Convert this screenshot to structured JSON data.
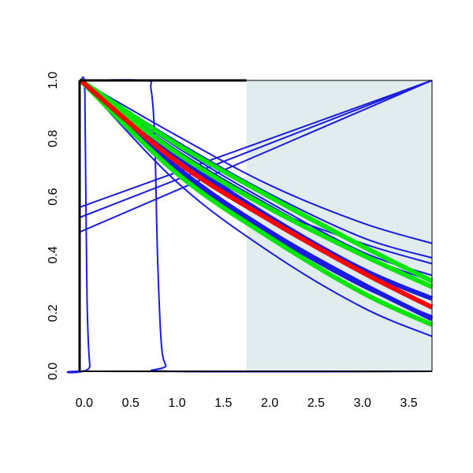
{
  "chart_data": {
    "type": "line",
    "title": "",
    "xlabel": "",
    "ylabel": "",
    "xlim": [
      -0.05,
      3.75
    ],
    "ylim": [
      0.0,
      1.0
    ],
    "x_ticks": [
      0.0,
      0.5,
      1.0,
      1.5,
      2.0,
      2.5,
      3.0,
      3.5
    ],
    "x_tick_labels": [
      "0.0",
      "0.5",
      "1.0",
      "1.5",
      "2.0",
      "2.5",
      "3.0",
      "3.5"
    ],
    "y_ticks": [
      0.0,
      0.2,
      0.4,
      0.6,
      0.8,
      1.0
    ],
    "y_tick_labels": [
      "0.0",
      "0.2",
      "0.4",
      "0.6",
      "0.8",
      "1.0"
    ],
    "grid": false,
    "legend": "none",
    "shaded_region": {
      "x_from": 1.75,
      "x_to": 3.75,
      "color": "#e0eced"
    },
    "colors": {
      "blue": "#1c1ce0",
      "red": "#ff0000",
      "green": "#00e600"
    },
    "series": [
      {
        "color": "blue",
        "width": "thin",
        "kind": "step",
        "points": [
          [
            -0.04,
            1.0
          ],
          [
            0.0,
            1.0
          ],
          [
            0.01,
            0.85
          ],
          [
            0.03,
            0.25
          ],
          [
            0.06,
            0.02
          ],
          [
            0.1,
            0.0
          ],
          [
            3.75,
            0.0
          ]
        ]
      },
      {
        "color": "blue",
        "width": "thin",
        "kind": "step",
        "points": [
          [
            -0.04,
            1.0
          ],
          [
            0.65,
            1.0
          ],
          [
            0.72,
            0.97
          ],
          [
            0.76,
            0.8
          ],
          [
            0.79,
            0.4
          ],
          [
            0.83,
            0.1
          ],
          [
            0.88,
            0.02
          ],
          [
            0.95,
            0.0
          ],
          [
            3.75,
            0.0
          ]
        ]
      },
      {
        "color": "blue",
        "width": "thin",
        "kind": "line",
        "points": [
          [
            -0.04,
            0.48
          ],
          [
            3.75,
            1.0
          ]
        ]
      },
      {
        "color": "blue",
        "width": "thin",
        "kind": "line",
        "points": [
          [
            -0.04,
            0.53
          ],
          [
            3.75,
            1.0
          ]
        ]
      },
      {
        "color": "blue",
        "width": "thin",
        "kind": "line",
        "points": [
          [
            -0.04,
            0.565
          ],
          [
            3.75,
            1.0
          ]
        ]
      },
      {
        "color": "blue",
        "width": "thin",
        "kind": "curve",
        "points": [
          [
            -0.04,
            1.0
          ],
          [
            1.0,
            0.74
          ],
          [
            2.0,
            0.56
          ],
          [
            3.0,
            0.44
          ],
          [
            3.75,
            0.37
          ]
        ]
      },
      {
        "color": "blue",
        "width": "thin",
        "kind": "curve",
        "points": [
          [
            -0.04,
            1.0
          ],
          [
            1.0,
            0.81
          ],
          [
            2.0,
            0.64
          ],
          [
            3.0,
            0.51
          ],
          [
            3.75,
            0.44
          ]
        ]
      },
      {
        "color": "blue",
        "width": "thin",
        "kind": "curve",
        "points": [
          [
            -0.04,
            1.0
          ],
          [
            1.0,
            0.79
          ],
          [
            2.0,
            0.61
          ],
          [
            3.0,
            0.46
          ],
          [
            3.75,
            0.39
          ]
        ]
      },
      {
        "color": "blue",
        "width": "thin",
        "kind": "curve",
        "points": [
          [
            -0.04,
            1.0
          ],
          [
            1.0,
            0.77
          ],
          [
            2.0,
            0.58
          ],
          [
            3.0,
            0.41
          ],
          [
            3.75,
            0.33
          ]
        ]
      },
      {
        "color": "blue",
        "width": "thin",
        "kind": "curve",
        "points": [
          [
            -0.04,
            1.0
          ],
          [
            1.0,
            0.76
          ],
          [
            2.0,
            0.57
          ],
          [
            3.0,
            0.4
          ],
          [
            3.75,
            0.31
          ]
        ]
      },
      {
        "color": "blue",
        "width": "thin",
        "kind": "curve",
        "points": [
          [
            -0.04,
            1.0
          ],
          [
            1.0,
            0.65
          ],
          [
            2.0,
            0.41
          ],
          [
            3.0,
            0.22
          ],
          [
            3.75,
            0.12
          ]
        ]
      },
      {
        "color": "blue",
        "width": "thin",
        "kind": "curve",
        "points": [
          [
            -0.04,
            1.0
          ],
          [
            1.0,
            0.69
          ],
          [
            2.0,
            0.47
          ],
          [
            3.0,
            0.29
          ],
          [
            3.75,
            0.19
          ]
        ]
      },
      {
        "color": "blue",
        "width": "thick",
        "kind": "curve",
        "points": [
          [
            -0.04,
            1.0
          ],
          [
            1.0,
            0.74
          ],
          [
            2.0,
            0.53
          ],
          [
            3.0,
            0.35
          ],
          [
            3.75,
            0.25
          ]
        ]
      },
      {
        "color": "blue",
        "width": "thick",
        "kind": "curve",
        "points": [
          [
            -0.04,
            1.0
          ],
          [
            1.0,
            0.7
          ],
          [
            2.0,
            0.48
          ],
          [
            3.0,
            0.3
          ],
          [
            3.75,
            0.18
          ]
        ]
      },
      {
        "color": "green",
        "width": "thick",
        "kind": "curve",
        "points": [
          [
            -0.04,
            1.0
          ],
          [
            1.0,
            0.78
          ],
          [
            2.0,
            0.6
          ],
          [
            3.0,
            0.43
          ],
          [
            3.75,
            0.31
          ]
        ]
      },
      {
        "color": "green",
        "width": "thick",
        "kind": "curve",
        "points": [
          [
            -0.04,
            1.0
          ],
          [
            1.0,
            0.75
          ],
          [
            2.0,
            0.56
          ],
          [
            3.0,
            0.4
          ],
          [
            3.75,
            0.29
          ]
        ]
      },
      {
        "color": "green",
        "width": "thick",
        "kind": "curve",
        "points": [
          [
            -0.04,
            1.0
          ],
          [
            1.0,
            0.68
          ],
          [
            2.0,
            0.46
          ],
          [
            3.0,
            0.27
          ],
          [
            3.75,
            0.16
          ]
        ]
      },
      {
        "color": "red",
        "width": "thick",
        "kind": "curve",
        "points": [
          [
            -0.04,
            1.0
          ],
          [
            1.0,
            0.72
          ],
          [
            2.0,
            0.52
          ],
          [
            3.0,
            0.34
          ],
          [
            3.75,
            0.22
          ]
        ]
      }
    ]
  }
}
